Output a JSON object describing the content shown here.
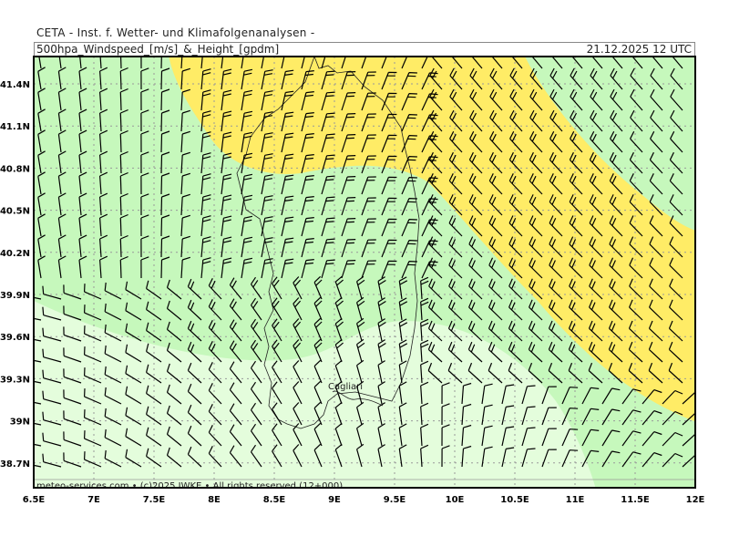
{
  "header": {
    "institute": "CETA - Inst. f. Wetter- und Klimafolgenanalysen -",
    "product": "500hpa_Windspeed_[m/s]_&_Height_[gpdm]",
    "valid_time": "21.12.2025 12 UTC"
  },
  "map": {
    "lon_ticks": [
      "6.5E",
      "7E",
      "7.5E",
      "8E",
      "8.5E",
      "9E",
      "9.5E",
      "10E",
      "10.5E",
      "11E",
      "11.5E",
      "12E"
    ],
    "lat_ticks": [
      "41.4N",
      "41.1N",
      "40.8N",
      "40.5N",
      "40.2N",
      "39.9N",
      "39.6N",
      "39.3N",
      "39N",
      "38.7N"
    ],
    "city_label": "Cagliari",
    "credit": "meteo-services.com • (c)2025 IWKE • All rights reserved (12+000)",
    "colors": {
      "pale_green": "#e4fddc",
      "green": "#c6f8bc",
      "yellow": "#ffec66",
      "grid": "#999999"
    }
  }
}
